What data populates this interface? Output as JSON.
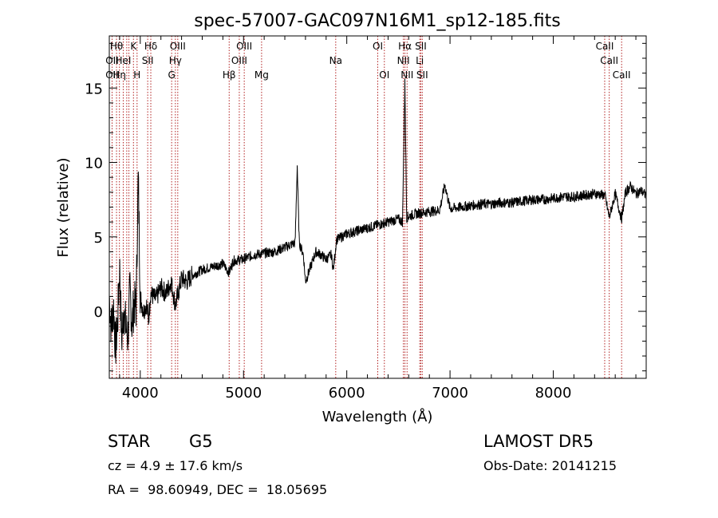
{
  "chart_data": {
    "type": "line",
    "title": "spec-57007-GAC097N16M1_sp12-185.fits",
    "xlabel": "Wavelength (Å)",
    "ylabel": "Flux (relative)",
    "xlim": [
      3700,
      8900
    ],
    "ylim": [
      -4.5,
      18.5
    ],
    "x_ticks": [
      4000,
      5000,
      6000,
      7000,
      8000
    ],
    "y_ticks": [
      0,
      5,
      10,
      15
    ],
    "grid": false,
    "series": [
      {
        "x": [
          3700,
          3720,
          3740,
          3760,
          3780,
          3800,
          3820,
          3840,
          3860,
          3880,
          3900,
          3920,
          3940,
          3960,
          3980,
          4000,
          4030,
          4060,
          4080,
          4100,
          4150,
          4200,
          4250,
          4300,
          4340,
          4400,
          4450,
          4500,
          4600,
          4700,
          4800,
          4861,
          4900,
          5000,
          5100,
          5200,
          5300,
          5400,
          5500,
          5520,
          5540,
          5580,
          5600,
          5700,
          5750,
          5800,
          5850,
          5870,
          5900,
          6000,
          6100,
          6200,
          6300,
          6400,
          6500,
          6540,
          6563,
          6580,
          6600,
          6700,
          6800,
          6900,
          6950,
          7000,
          7100,
          7200,
          7300,
          7400,
          7500,
          7600,
          7700,
          7800,
          7900,
          8000,
          8100,
          8200,
          8300,
          8400,
          8500,
          8542,
          8600,
          8662,
          8700,
          8750,
          8800,
          8850,
          8880,
          8900
        ],
        "y": [
          1.0,
          -1.2,
          0.5,
          -2.5,
          -0.8,
          3.0,
          -2.0,
          0.2,
          -1.0,
          -1.8,
          1.5,
          -1.0,
          0.6,
          0.2,
          9.2,
          1.0,
          0.0,
          0.5,
          -0.6,
          1.2,
          0.8,
          1.6,
          1.2,
          2.0,
          0.4,
          2.2,
          2.0,
          2.4,
          2.8,
          3.0,
          3.2,
          2.6,
          3.4,
          3.5,
          3.8,
          3.9,
          4.0,
          4.3,
          4.6,
          9.8,
          4.6,
          3.8,
          2.0,
          4.0,
          3.8,
          3.5,
          3.8,
          2.8,
          4.8,
          5.2,
          5.4,
          5.6,
          5.8,
          6.0,
          6.2,
          6.0,
          15.5,
          6.3,
          6.4,
          6.6,
          6.7,
          6.8,
          8.5,
          6.9,
          7.0,
          7.1,
          7.2,
          7.2,
          7.3,
          7.3,
          7.4,
          7.5,
          7.5,
          7.6,
          7.7,
          7.7,
          7.8,
          7.9,
          7.8,
          6.3,
          7.9,
          6.2,
          8.0,
          8.4,
          7.9,
          8.1,
          7.9,
          7.8
        ]
      }
    ],
    "lines": [
      {
        "wl": 3727,
        "label": "OII",
        "row": 1
      },
      {
        "wl": 3727,
        "label": "OII",
        "row": 2
      },
      {
        "wl": 3770,
        "label": "Hθ",
        "row": 0
      },
      {
        "wl": 3798,
        "label": "Hη",
        "row": 2
      },
      {
        "wl": 3835,
        "label": "HeI",
        "row": 1
      },
      {
        "wl": 3869,
        "label": "",
        "row": 0
      },
      {
        "wl": 3890,
        "label": "",
        "row": 0
      },
      {
        "wl": 3934,
        "label": "K",
        "row": 0
      },
      {
        "wl": 3969,
        "label": "H",
        "row": 2
      },
      {
        "wl": 4072,
        "label": "SII",
        "row": 1
      },
      {
        "wl": 4102,
        "label": "Hδ",
        "row": 0
      },
      {
        "wl": 4304,
        "label": "G",
        "row": 2
      },
      {
        "wl": 4340,
        "label": "Hγ",
        "row": 1
      },
      {
        "wl": 4363,
        "label": "OIII",
        "row": 0
      },
      {
        "wl": 4861,
        "label": "Hβ",
        "row": 2
      },
      {
        "wl": 4959,
        "label": "OIII",
        "row": 1
      },
      {
        "wl": 5007,
        "label": "OIII",
        "row": 0
      },
      {
        "wl": 5175,
        "label": "Mg",
        "row": 2
      },
      {
        "wl": 5893,
        "label": "Na",
        "row": 1
      },
      {
        "wl": 6300,
        "label": "OI",
        "row": 0
      },
      {
        "wl": 6364,
        "label": "OI",
        "row": 2
      },
      {
        "wl": 6548,
        "label": "NII",
        "row": 1
      },
      {
        "wl": 6563,
        "label": "Hα",
        "row": 0
      },
      {
        "wl": 6584,
        "label": "NII",
        "row": 2
      },
      {
        "wl": 6707,
        "label": "Li",
        "row": 1
      },
      {
        "wl": 6717,
        "label": "SII",
        "row": 0
      },
      {
        "wl": 6731,
        "label": "SII",
        "row": 2
      },
      {
        "wl": 8498,
        "label": "CaII",
        "row": 0
      },
      {
        "wl": 8542,
        "label": "CaII",
        "row": 1
      },
      {
        "wl": 8662,
        "label": "CaII",
        "row": 2
      }
    ]
  },
  "info": {
    "class": "STAR",
    "subclass": "G5",
    "survey": "LAMOST DR5",
    "cz": "cz = 4.9 ± 17.6 km/s",
    "obsdate": "Obs-Date: 20141215",
    "coords": "RA =  98.60949, DEC =  18.05695"
  }
}
